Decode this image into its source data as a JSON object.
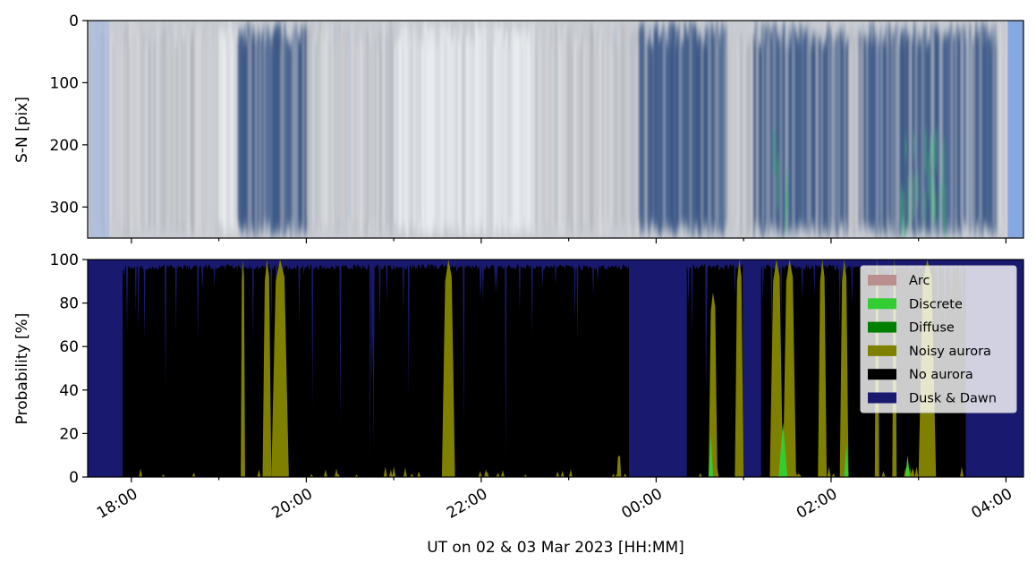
{
  "chart_data": [
    {
      "type": "heatmap",
      "title": "",
      "xlabel": "",
      "ylabel": "S-N [pix]",
      "ylim": [
        350,
        0
      ],
      "yticks": [
        0,
        100,
        200,
        300
      ],
      "ytick_labels": [
        "0",
        "100",
        "200",
        "300"
      ],
      "xlim_hours": [
        17.5,
        28.2
      ],
      "description_colors": {
        "background": "#c9ccd2",
        "aurora_blue": "#3e5a86",
        "aurora_green": "#38d16a",
        "edge_blue": "#86a8e0"
      },
      "dark_bands_hours": [
        [
          19.2,
          20.0
        ],
        [
          23.8,
          24.8
        ],
        [
          25.1,
          26.2
        ],
        [
          26.3,
          27.9
        ]
      ],
      "bright_bands_hours": [
        [
          21.0,
          22.6
        ],
        [
          19.0,
          19.8
        ]
      ],
      "green_bands_hours": [
        [
          25.3,
          25.6
        ],
        [
          26.8,
          27.3
        ]
      ]
    },
    {
      "type": "area",
      "title": "",
      "xlabel": "UT on 02 & 03 Mar 2023 [HH:MM]",
      "ylabel": "Probability [%]",
      "ylim": [
        0,
        100
      ],
      "yticks": [
        0,
        20,
        40,
        60,
        80,
        100
      ],
      "ytick_labels": [
        "0",
        "20",
        "40",
        "60",
        "80",
        "100"
      ],
      "xlim_hours": [
        17.5,
        28.2
      ],
      "xticks_hours": [
        18,
        20,
        22,
        24,
        26,
        28
      ],
      "xtick_labels": [
        "18:00",
        "20:00",
        "22:00",
        "00:00",
        "02:00",
        "04:00"
      ],
      "legend_position": "top-right",
      "series": [
        {
          "name": "Arc",
          "color": "#bc8f8f"
        },
        {
          "name": "Discrete",
          "color": "#32cd32"
        },
        {
          "name": "Diffuse",
          "color": "#008000"
        },
        {
          "name": "Noisy aurora",
          "color": "#808000"
        },
        {
          "name": "No aurora",
          "color": "#000000"
        },
        {
          "name": "Dusk & Dawn",
          "color": "#191970"
        }
      ],
      "dusk_dawn_intervals_hours": [
        [
          17.5,
          17.9
        ],
        [
          23.7,
          24.35
        ],
        [
          25.0,
          25.2
        ],
        [
          27.55,
          28.2
        ]
      ],
      "no_aurora_top_percent": 98,
      "noisy_aurora_spikes_hours": [
        [
          19.25,
          19.3,
          100
        ],
        [
          19.5,
          19.6,
          100
        ],
        [
          19.6,
          19.8,
          100
        ],
        [
          21.55,
          21.7,
          100
        ],
        [
          23.55,
          23.6,
          10
        ],
        [
          24.6,
          24.7,
          85
        ],
        [
          24.9,
          25.0,
          100
        ],
        [
          25.3,
          25.45,
          100
        ],
        [
          25.45,
          25.6,
          100
        ],
        [
          25.85,
          25.95,
          100
        ],
        [
          26.1,
          26.2,
          100
        ],
        [
          26.5,
          26.55,
          100
        ],
        [
          26.7,
          26.75,
          100
        ],
        [
          27.0,
          27.2,
          100
        ]
      ],
      "discrete_spikes_hours": [
        [
          24.6,
          24.65,
          20
        ],
        [
          25.4,
          25.5,
          25
        ],
        [
          26.15,
          26.2,
          15
        ],
        [
          26.85,
          26.9,
          10
        ]
      ]
    }
  ]
}
